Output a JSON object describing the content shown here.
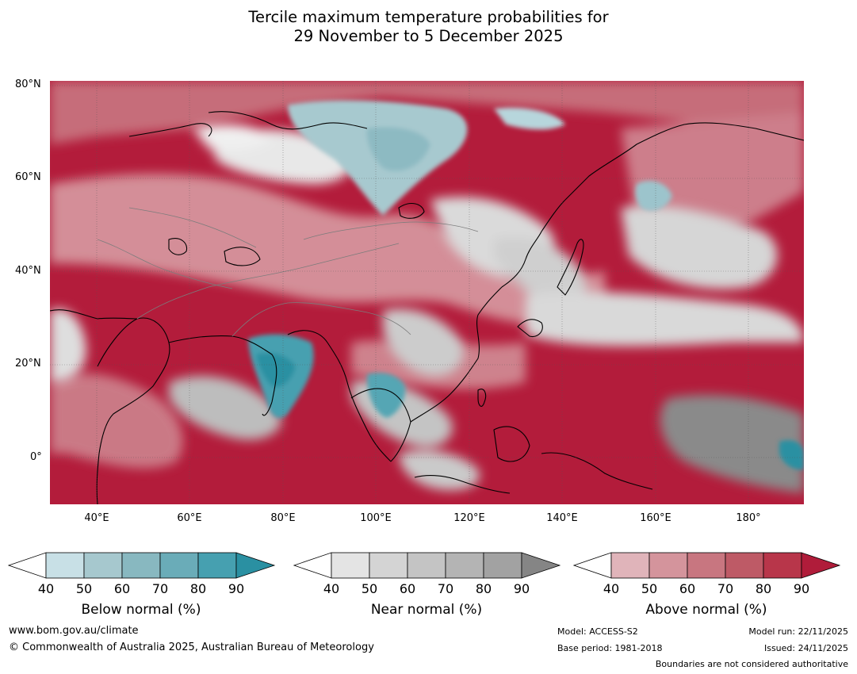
{
  "title": {
    "line1": "Tercile maximum temperature probabilities for",
    "line2": "29 November to 5 December 2025"
  },
  "axes": {
    "lat_labels": [
      "80°N",
      "60°N",
      "40°N",
      "20°N",
      "0°"
    ],
    "lon_labels": [
      "40°E",
      "60°E",
      "80°E",
      "100°E",
      "120°E",
      "140°E",
      "160°E",
      "180°"
    ]
  },
  "legend": {
    "below": {
      "label": "Below normal (%)",
      "ticks": [
        "40",
        "50",
        "60",
        "70",
        "80",
        "90"
      ],
      "colors": [
        "#ffffff",
        "#c8e0e6",
        "#a6c8ce",
        "#88b8c0",
        "#6aacb8",
        "#46a0b0",
        "#2a90a2"
      ]
    },
    "near": {
      "label": "Near normal (%)",
      "ticks": [
        "40",
        "50",
        "60",
        "70",
        "80",
        "90"
      ],
      "colors": [
        "#ffffff",
        "#e4e4e4",
        "#d4d4d4",
        "#c4c4c4",
        "#b4b4b4",
        "#a2a2a2",
        "#858585"
      ]
    },
    "above": {
      "label": "Above normal (%)",
      "ticks": [
        "40",
        "50",
        "60",
        "70",
        "80",
        "90"
      ],
      "colors": [
        "#ffffff",
        "#e0b4ba",
        "#d4949c",
        "#c87680",
        "#be5a66",
        "#b8364a",
        "#b01c3a"
      ]
    }
  },
  "footer": {
    "website": "www.bom.gov.au/climate",
    "copyright": "© Commonwealth of Australia 2025, Australian Bureau of Meteorology",
    "model": "Model: ACCESS-S2",
    "base_period": "Base period: 1981-2018",
    "model_run": "Model run: 22/11/2025",
    "issued": "Issued: 24/11/2025",
    "disclaimer": "Boundaries are not considered authoritative"
  },
  "colors": {
    "map_red": "#b31c3b",
    "grid": "#555555"
  }
}
